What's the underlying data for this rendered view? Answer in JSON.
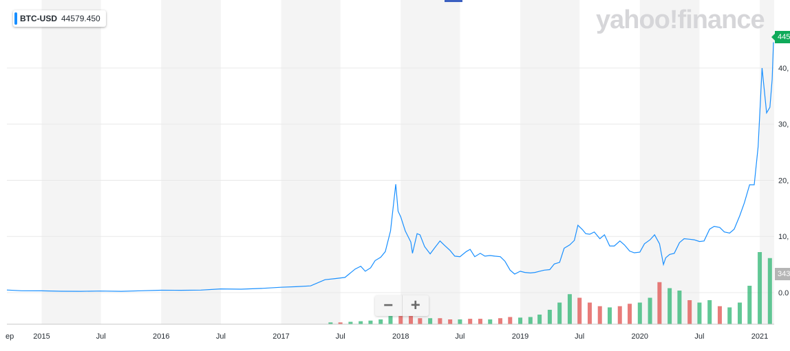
{
  "badge": {
    "symbol": "BTC-USD",
    "value": "44579.450",
    "color": "#188fff"
  },
  "logo": {
    "text": "yahoo!finance"
  },
  "zoom": {
    "minus": "−",
    "plus": "+"
  },
  "last_price_label": "445",
  "last_volume_label": "343",
  "chart_data": {
    "type": "line",
    "series": [
      {
        "values_x": [
          "2014-09-17",
          "2014-11-01",
          "2015-01-01",
          "2015-03-01",
          "2015-05-01",
          "2015-07-01",
          "2015-09-01",
          "2015-11-01",
          "2016-01-01",
          "2016-03-01",
          "2016-05-01",
          "2016-07-01",
          "2016-09-01",
          "2016-11-01",
          "2017-01-01",
          "2017-02-15",
          "2017-04-01",
          "2017-05-15",
          "2017-06-15",
          "2017-07-15",
          "2017-08-15",
          "2017-09-01",
          "2017-09-15",
          "2017-10-01",
          "2017-10-15",
          "2017-11-01",
          "2017-11-15",
          "2017-12-01",
          "2017-12-17",
          "2017-12-24",
          "2018-01-01",
          "2018-01-15",
          "2018-02-01",
          "2018-02-06",
          "2018-02-20",
          "2018-03-01",
          "2018-03-15",
          "2018-04-01",
          "2018-04-15",
          "2018-05-01",
          "2018-05-15",
          "2018-06-01",
          "2018-06-15",
          "2018-07-01",
          "2018-07-20",
          "2018-08-01",
          "2018-08-15",
          "2018-09-01",
          "2018-09-15",
          "2018-10-01",
          "2018-10-15",
          "2018-11-01",
          "2018-11-15",
          "2018-12-01",
          "2018-12-15",
          "2019-01-01",
          "2019-01-15",
          "2019-02-01",
          "2019-02-15",
          "2019-03-01",
          "2019-03-15",
          "2019-04-01",
          "2019-04-15",
          "2019-05-01",
          "2019-05-15",
          "2019-06-01",
          "2019-06-15",
          "2019-06-26",
          "2019-07-10",
          "2019-07-20",
          "2019-08-01",
          "2019-08-15",
          "2019-09-01",
          "2019-09-15",
          "2019-10-01",
          "2019-10-15",
          "2019-11-01",
          "2019-11-15",
          "2019-12-01",
          "2019-12-15",
          "2020-01-01",
          "2020-01-15",
          "2020-02-01",
          "2020-02-15",
          "2020-03-01",
          "2020-03-13",
          "2020-03-20",
          "2020-04-01",
          "2020-04-15",
          "2020-05-01",
          "2020-05-15",
          "2020-06-01",
          "2020-06-15",
          "2020-07-01",
          "2020-07-15",
          "2020-08-01",
          "2020-08-15",
          "2020-09-01",
          "2020-09-15",
          "2020-10-01",
          "2020-10-15",
          "2020-11-01",
          "2020-11-15",
          "2020-12-01",
          "2020-12-15",
          "2020-12-27",
          "2021-01-08",
          "2021-01-22",
          "2021-02-01",
          "2021-02-08",
          "2021-02-12"
        ],
        "values": [
          460,
          330,
          315,
          250,
          235,
          285,
          230,
          330,
          430,
          415,
          450,
          660,
          610,
          740,
          960,
          1050,
          1200,
          2300,
          2500,
          2700,
          4200,
          4700,
          3800,
          4400,
          5700,
          6300,
          7300,
          11000,
          19300,
          14500,
          13500,
          11000,
          9000,
          7000,
          10500,
          10300,
          8200,
          6900,
          8000,
          9200,
          8400,
          7500,
          6500,
          6400,
          7300,
          7700,
          6400,
          7000,
          6500,
          6600,
          6500,
          6400,
          5600,
          4000,
          3300,
          3800,
          3600,
          3500,
          3600,
          3800,
          4000,
          4100,
          5100,
          5400,
          7900,
          8500,
          9300,
          12000,
          11200,
          10500,
          10400,
          10800,
          9600,
          10300,
          8300,
          8300,
          9200,
          8500,
          7400,
          7100,
          7200,
          8700,
          9400,
          10300,
          8700,
          5000,
          6200,
          6800,
          7000,
          8900,
          9600,
          9500,
          9400,
          9100,
          9200,
          11300,
          11800,
          11600,
          10800,
          10600,
          11300,
          13700,
          16000,
          19200,
          19200,
          26000,
          40000,
          32000,
          33000,
          38000,
          44579
        ]
      }
    ],
    "volume": {
      "x": [
        "2017-06-01",
        "2017-07-01",
        "2017-08-01",
        "2017-09-01",
        "2017-10-01",
        "2017-11-01",
        "2017-12-01",
        "2018-01-01",
        "2018-02-01",
        "2018-03-01",
        "2018-04-01",
        "2018-05-01",
        "2018-06-01",
        "2018-07-01",
        "2018-08-01",
        "2018-09-01",
        "2018-10-01",
        "2018-11-01",
        "2018-12-01",
        "2019-01-01",
        "2019-02-01",
        "2019-03-01",
        "2019-04-01",
        "2019-05-01",
        "2019-06-01",
        "2019-07-01",
        "2019-08-01",
        "2019-09-01",
        "2019-10-01",
        "2019-11-01",
        "2019-12-01",
        "2020-01-01",
        "2020-02-01",
        "2020-03-01",
        "2020-04-01",
        "2020-05-01",
        "2020-06-01",
        "2020-07-01",
        "2020-08-01",
        "2020-09-01",
        "2020-10-01",
        "2020-11-01",
        "2020-12-01",
        "2021-01-01",
        "2021-02-01"
      ],
      "values": [
        1.5,
        1.5,
        2,
        2.5,
        3,
        4,
        12,
        10,
        7,
        5,
        5,
        5,
        4,
        4,
        4.5,
        4.5,
        4,
        5,
        6,
        5.5,
        6,
        8,
        12,
        18,
        25,
        22,
        18,
        15,
        14,
        15,
        17,
        18,
        22,
        35,
        30,
        28,
        20,
        18,
        20,
        15,
        14,
        18,
        32,
        60,
        55
      ],
      "up": [
        true,
        false,
        true,
        true,
        true,
        true,
        true,
        false,
        false,
        false,
        true,
        false,
        false,
        true,
        false,
        false,
        true,
        false,
        false,
        true,
        true,
        true,
        true,
        true,
        true,
        false,
        false,
        false,
        true,
        false,
        false,
        true,
        true,
        false,
        true,
        true,
        false,
        true,
        true,
        false,
        true,
        true,
        true,
        true,
        true
      ]
    },
    "xticks": [
      {
        "date": "2014-09-01",
        "label": "ep"
      },
      {
        "date": "2015-01-01",
        "label": "2015"
      },
      {
        "date": "2015-07-01",
        "label": "Jul"
      },
      {
        "date": "2016-01-01",
        "label": "2016"
      },
      {
        "date": "2016-07-01",
        "label": "Jul"
      },
      {
        "date": "2017-01-01",
        "label": "2017"
      },
      {
        "date": "2017-07-01",
        "label": "Jul"
      },
      {
        "date": "2018-01-01",
        "label": "2018"
      },
      {
        "date": "2018-07-01",
        "label": "Jul"
      },
      {
        "date": "2019-01-01",
        "label": "2019"
      },
      {
        "date": "2019-07-01",
        "label": "Jul"
      },
      {
        "date": "2020-01-01",
        "label": "2020"
      },
      {
        "date": "2020-07-01",
        "label": "Jul"
      },
      {
        "date": "2021-01-01",
        "label": "2021"
      }
    ],
    "yticks": [
      {
        "value": 0,
        "label": "0.0"
      },
      {
        "value": 10000,
        "label": "10,"
      },
      {
        "value": 20000,
        "label": "20,"
      },
      {
        "value": 30000,
        "label": "30,"
      },
      {
        "value": 40000,
        "label": "40,"
      }
    ],
    "ylim": [
      0,
      45500
    ],
    "xlim": [
      "2014-09-17",
      "2021-02-14"
    ],
    "grid": true,
    "colors": {
      "line": "#188fff",
      "band": "#f4f4f4",
      "vol_up": "#2db673",
      "vol_down": "#e0504e",
      "last_price": "#0faa5a",
      "last_vol": "#b5b5b5"
    }
  }
}
